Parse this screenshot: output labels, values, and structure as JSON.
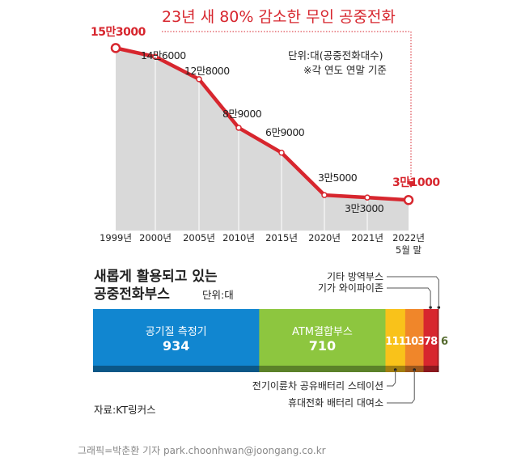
{
  "chart_data": [
    {
      "type": "line",
      "title": "23년 새 80% 감소한 무인 공중전화",
      "unit_note": "단위:대(공중전화대수)",
      "basis_note": "※각 연도 연말 기준",
      "categories": [
        "1999년",
        "2000년",
        "2005년",
        "2010년",
        "2015년",
        "2020년",
        "2021년",
        "2022년 5월 말"
      ],
      "values": [
        153000,
        146000,
        128000,
        89000,
        69000,
        35000,
        33000,
        31000
      ],
      "data_labels": [
        "15만3000",
        "14만6000",
        "12만8000",
        "8만9000",
        "6만9000",
        "3만5000",
        "3만3000",
        "3만1000"
      ],
      "colors": {
        "line": "#d7262e",
        "area": "#d9d9d9"
      }
    },
    {
      "type": "bar",
      "orientation": "stacked-horizontal",
      "title_line1": "새롭게 활용되고 있는",
      "title_line2": "공중전화부스",
      "unit": "단위:대",
      "source": "자료:KT링커스",
      "segments": [
        {
          "name": "공기질 측정기",
          "value": 934,
          "color": "#1186d0"
        },
        {
          "name": "ATM결합부스",
          "value": 710,
          "color": "#8dc63f"
        },
        {
          "name": "전기이륜차 공유배터리 스테이션",
          "value": 111,
          "color": "#f9c21a"
        },
        {
          "name": "휴대전화 배터리 대여소",
          "value": 103,
          "color": "#f0862a"
        },
        {
          "name": "기가 와이파이존",
          "value": 78,
          "color": "#d7262e"
        },
        {
          "name": "기타 방역부스",
          "value": 6,
          "color": "#a31d22"
        }
      ]
    }
  ],
  "credit": "그래픽=박춘환 기자 park.choonhwan@joongang.co.kr"
}
